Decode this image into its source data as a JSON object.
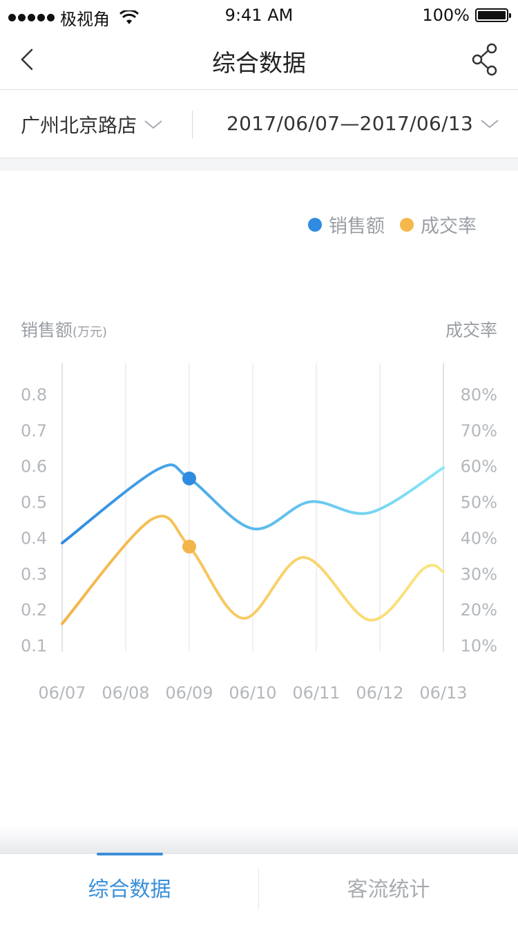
{
  "status_bar": {
    "carrier": "极视角",
    "time": "9:41 AM",
    "battery": "100%",
    "battery_level": 1.0,
    "wifi_icon": "wifi-icon"
  },
  "nav": {
    "title": "综合数据",
    "back_icon": "back-chevron-icon",
    "share_icon": "share-icon"
  },
  "filters": {
    "store": "广州北京路店",
    "date_range": "2017/06/07—2017/06/13"
  },
  "legend": [
    {
      "label": "销售额",
      "color": "#2f8be0"
    },
    {
      "label": "成交率",
      "color": "#f5b84a"
    }
  ],
  "axes": {
    "left_title": "销售额",
    "left_unit": "(万元)",
    "right_title": "成交率"
  },
  "chart_data": {
    "type": "line",
    "x": [
      "06/07",
      "06/08",
      "06/09",
      "06/10",
      "06/11",
      "06/12",
      "06/13"
    ],
    "y_left_ticks": [
      "0.8",
      "0.7",
      "0.6",
      "0.5",
      "0.4",
      "0.3",
      "0.2",
      "0.1"
    ],
    "y_right_ticks": [
      "80%",
      "70%",
      "60%",
      "50%",
      "40%",
      "30%",
      "20%",
      "10%"
    ],
    "y_left_range": [
      0.1,
      0.8
    ],
    "y_right_range": [
      10,
      80
    ],
    "series": [
      {
        "name": "销售额",
        "axis": "left",
        "color_start": "#2f8be0",
        "color_end": "#86e6f7",
        "points": [
          [
            0,
            0.385
          ],
          [
            1.5,
            0.59
          ],
          [
            2,
            0.565
          ],
          [
            3,
            0.425
          ],
          [
            3.9,
            0.5
          ],
          [
            4.85,
            0.47
          ],
          [
            6,
            0.595
          ]
        ]
      },
      {
        "name": "成交率",
        "axis": "right",
        "color_start": "#f3b449",
        "color_end": "#fbe681",
        "points": [
          [
            0,
            16
          ],
          [
            1.4,
            45
          ],
          [
            2,
            37.5
          ],
          [
            2.85,
            17.5
          ],
          [
            3.8,
            34.5
          ],
          [
            4.85,
            17
          ],
          [
            5.7,
            31.5
          ],
          [
            6,
            30.5
          ]
        ]
      }
    ],
    "highlight_index": 2,
    "highlight_values": {
      "sales": 0.565,
      "rate": 37.5
    },
    "grid": "vertical"
  },
  "tabs": [
    {
      "label": "综合数据",
      "active": true
    },
    {
      "label": "客流统计",
      "active": false
    }
  ]
}
